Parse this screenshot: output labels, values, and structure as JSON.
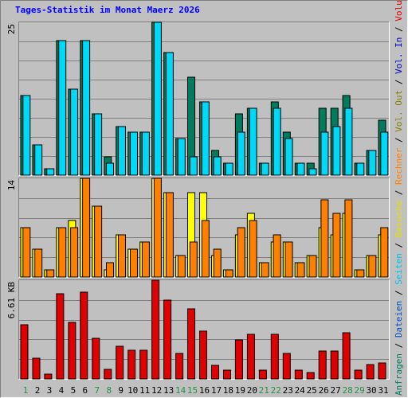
{
  "title": "Tages-Statistik im Monat Maerz 2026",
  "colors": {
    "bg": "#c0c0c0",
    "title": "#0000ff",
    "grid": "#808080",
    "anfragen": "#007c5c",
    "dateien": "#00d8f8",
    "seiten": "#00a0d0",
    "besuche": "#ffff00",
    "rechner": "#ff8000",
    "vol": "#e00000",
    "weekend": "#2a8f4a"
  },
  "right_legend": {
    "top": [
      {
        "text": "Anfragen",
        "color": "#007c5c"
      },
      {
        "text": " / ",
        "color": "#000000"
      },
      {
        "text": "Dateien",
        "color": "#0050c0"
      },
      {
        "text": " / ",
        "color": "#000000"
      },
      {
        "text": "Seiten",
        "color": "#00c0f0"
      },
      {
        "text": " / ",
        "color": "#000000"
      },
      {
        "text": "Besuche",
        "color": "#e0e000"
      },
      {
        "text": " / ",
        "color": "#000000"
      },
      {
        "text": "Rechner",
        "color": "#ff8000"
      },
      {
        "text": " / ",
        "color": "#000000"
      },
      {
        "text": "Vol. Out",
        "color": "#808000"
      },
      {
        "text": " / ",
        "color": "#000000"
      },
      {
        "text": "Vol. In",
        "color": "#0000c0"
      },
      {
        "text": " / ",
        "color": "#000000"
      },
      {
        "text": "Volumen",
        "color": "#e00000"
      }
    ]
  },
  "chart_data": [
    {
      "type": "bar",
      "ytick_label": "25",
      "ylim": [
        0,
        25
      ],
      "categories": [
        "1",
        "2",
        "3",
        "4",
        "5",
        "6",
        "7",
        "8",
        "9",
        "10",
        "11",
        "12",
        "13",
        "14",
        "15",
        "16",
        "17",
        "18",
        "19",
        "20",
        "21",
        "22",
        "23",
        "24",
        "25",
        "26",
        "27",
        "28",
        "29",
        "30",
        "31"
      ],
      "weekend_days": [
        "1",
        "7",
        "8",
        "14",
        "15",
        "21",
        "22",
        "28",
        "29"
      ],
      "series": [
        {
          "name": "Anfragen",
          "values": [
            13,
            5,
            1,
            22,
            14,
            22,
            10,
            3,
            8,
            7,
            7,
            25,
            20,
            6,
            16,
            12,
            4,
            2,
            10,
            11,
            2,
            12,
            7,
            2,
            2,
            11,
            11,
            13,
            2,
            4,
            9
          ]
        },
        {
          "name": "Dateien",
          "values": [
            13,
            5,
            1,
            22,
            14,
            22,
            10,
            2,
            8,
            7,
            7,
            25,
            20,
            6,
            3,
            12,
            3,
            2,
            7,
            11,
            2,
            11,
            6,
            2,
            1,
            7,
            8,
            11,
            2,
            4,
            7
          ]
        }
      ]
    },
    {
      "type": "bar",
      "ytick_label": "14",
      "ylim": [
        0,
        14
      ],
      "categories": [
        "1",
        "2",
        "3",
        "4",
        "5",
        "6",
        "7",
        "8",
        "9",
        "10",
        "11",
        "12",
        "13",
        "14",
        "15",
        "16",
        "17",
        "18",
        "19",
        "20",
        "21",
        "22",
        "23",
        "24",
        "25",
        "26",
        "27",
        "28",
        "29",
        "30",
        "31"
      ],
      "series": [
        {
          "name": "Besuche",
          "values": [
            7,
            4,
            1,
            7,
            8,
            14,
            10,
            1,
            6,
            4,
            5,
            14,
            12,
            3,
            12,
            12,
            3,
            1,
            6,
            9,
            2,
            5,
            5,
            2,
            3,
            7,
            6,
            9,
            1,
            3,
            6
          ]
        },
        {
          "name": "Rechner",
          "values": [
            7,
            4,
            1,
            7,
            7,
            14,
            10,
            2,
            6,
            4,
            5,
            14,
            12,
            3,
            5,
            8,
            4,
            1,
            7,
            8,
            2,
            6,
            5,
            2,
            3,
            11,
            9,
            11,
            1,
            3,
            7
          ]
        }
      ]
    },
    {
      "type": "bar",
      "ytick_label": "6.61 KB",
      "ylim": [
        0,
        6.61
      ],
      "categories": [
        "1",
        "2",
        "3",
        "4",
        "5",
        "6",
        "7",
        "8",
        "9",
        "10",
        "11",
        "12",
        "13",
        "14",
        "15",
        "16",
        "17",
        "18",
        "19",
        "20",
        "21",
        "22",
        "23",
        "24",
        "25",
        "26",
        "27",
        "28",
        "29",
        "30",
        "31"
      ],
      "series": [
        {
          "name": "Volumen",
          "values": [
            3.6,
            1.4,
            0.3,
            5.7,
            3.8,
            5.8,
            2.7,
            0.65,
            2.2,
            1.9,
            1.9,
            6.61,
            5.3,
            1.7,
            4.7,
            3.2,
            0.9,
            0.6,
            2.6,
            3.0,
            0.6,
            3.0,
            1.7,
            0.6,
            0.4,
            1.85,
            1.85,
            3.1,
            0.6,
            0.95,
            1.05
          ]
        }
      ]
    }
  ]
}
